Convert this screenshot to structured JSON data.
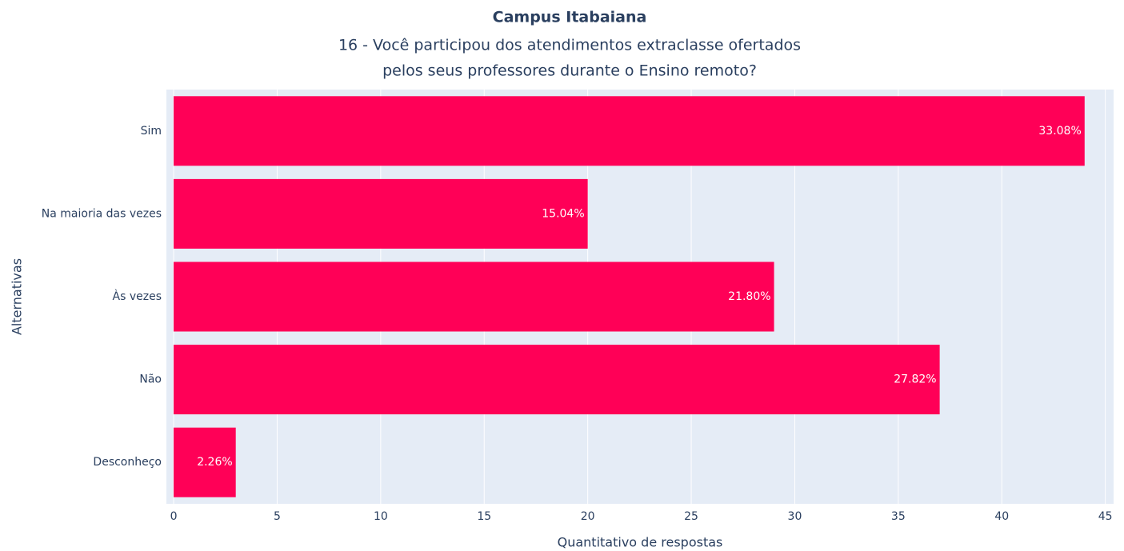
{
  "chart_data": {
    "type": "hbar",
    "title": "Campus Itabaiana",
    "subtitle": [
      "16 - Você participou dos atendimentos extraclasse ofertados",
      "pelos seus professores durante o Ensino remoto?"
    ],
    "xlabel": "Quantitativo de respostas",
    "ylabel": "Alternativas",
    "categories": [
      "Sim",
      "Na maioria das vezes",
      "Às vezes",
      "Não",
      "Desconheço"
    ],
    "values": [
      44,
      20,
      29,
      37,
      3
    ],
    "value_labels": [
      "33.08%",
      "15.04%",
      "21.80%",
      "27.82%",
      "2.26%"
    ],
    "color": "#ff0057",
    "xlim": [
      -0.35,
      45.4
    ],
    "xticks": [
      0,
      5,
      10,
      15,
      20,
      25,
      30,
      35,
      40,
      45
    ],
    "grid": true
  }
}
